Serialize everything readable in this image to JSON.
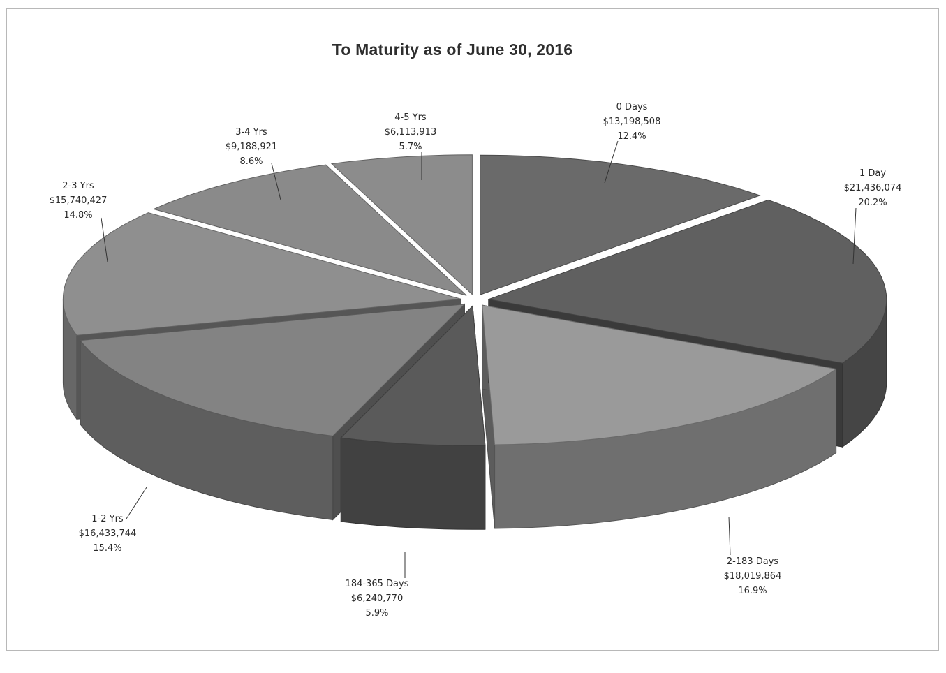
{
  "chart_data": {
    "type": "pie",
    "title": "To Maturity as of June 30, 2016",
    "slices": [
      {
        "label": "0 Days",
        "amount": "$13,198,508",
        "percent": "12.4%",
        "value": 13198508,
        "color": "#6a6a6a"
      },
      {
        "label": "1 Day",
        "amount": "$21,436,074",
        "percent": "20.2%",
        "value": 21436074,
        "color": "#606060"
      },
      {
        "label": "2-183 Days",
        "amount": "$18,019,864",
        "percent": "16.9%",
        "value": 18019864,
        "color": "#9a9a9a"
      },
      {
        "label": "184-365 Days",
        "amount": "$6,240,770",
        "percent": "5.9%",
        "value": 6240770,
        "color": "#5a5a5a"
      },
      {
        "label": "1-2 Yrs",
        "amount": "$16,433,744",
        "percent": "15.4%",
        "value": 16433744,
        "color": "#838383"
      },
      {
        "label": "2-3 Yrs",
        "amount": "$15,740,427",
        "percent": "14.8%",
        "value": 15740427,
        "color": "#8f8f8f"
      },
      {
        "label": "3-4 Yrs",
        "amount": "$9,188,921",
        "percent": "8.6%",
        "value": 9188921,
        "color": "#8a8a8a"
      },
      {
        "label": "4-5 Yrs",
        "amount": "$6,113,913",
        "percent": "5.7%",
        "value": 6113913,
        "color": "#8c8c8c"
      }
    ]
  }
}
